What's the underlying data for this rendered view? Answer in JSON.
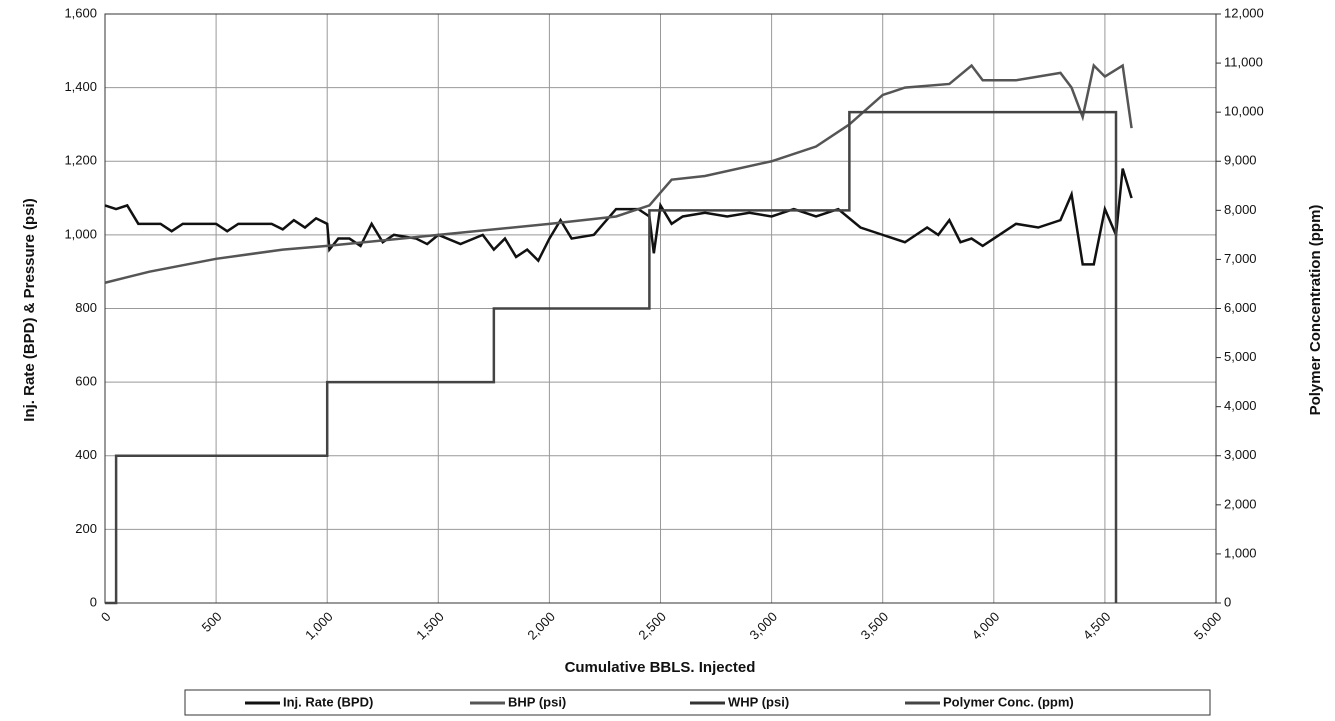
{
  "chart_data": {
    "type": "line",
    "x_label": "Cumulative BBLS. Injected",
    "y_label": "Inj. Rate (BPD) & Pressure (psi)",
    "y2_label": "Polymer Concentration (ppm)",
    "xlim": [
      0,
      5000
    ],
    "xticks": [
      0,
      500,
      {
        "value": 1000,
        "label": "1,000"
      },
      {
        "value": 1500,
        "label": "1,500"
      },
      {
        "value": 2000,
        "label": "2,000"
      },
      {
        "value": 2500,
        "label": "2,500"
      },
      {
        "value": 3000,
        "label": "3,000"
      },
      {
        "value": 3500,
        "label": "3,500"
      },
      {
        "value": 4000,
        "label": "4,000"
      },
      {
        "value": 4500,
        "label": "4,500"
      },
      {
        "value": 5000,
        "label": "5,000"
      }
    ],
    "ylim": [
      0,
      1600
    ],
    "yticks": [
      0,
      200,
      400,
      600,
      800,
      {
        "value": 1000,
        "label": "1,000"
      },
      {
        "value": 1200,
        "label": "1,200"
      },
      {
        "value": 1400,
        "label": "1,400"
      },
      {
        "value": 1600,
        "label": "1,600"
      }
    ],
    "y2lim": [
      0,
      12000
    ],
    "y2ticks": [
      0,
      {
        "value": 1000,
        "label": "1,000"
      },
      {
        "value": 2000,
        "label": "2,000"
      },
      {
        "value": 3000,
        "label": "3,000"
      },
      {
        "value": 4000,
        "label": "4,000"
      },
      {
        "value": 5000,
        "label": "5,000"
      },
      {
        "value": 6000,
        "label": "6,000"
      },
      {
        "value": 7000,
        "label": "7,000"
      },
      {
        "value": 8000,
        "label": "8,000"
      },
      {
        "value": 9000,
        "label": "9,000"
      },
      {
        "value": 10000,
        "label": "10,000"
      },
      {
        "value": 11000,
        "label": "11,000"
      },
      {
        "value": 12000,
        "label": "12,000"
      }
    ],
    "grid": true,
    "legend": "bottom",
    "series": [
      {
        "name": "Inj. Rate (BPD)",
        "color": "#111111",
        "x": [
          0,
          50,
          100,
          150,
          250,
          300,
          350,
          500,
          550,
          600,
          750,
          800,
          850,
          900,
          950,
          1000,
          1010,
          1050,
          1100,
          1150,
          1200,
          1250,
          1300,
          1400,
          1450,
          1500,
          1600,
          1700,
          1750,
          1800,
          1850,
          1900,
          1950,
          2000,
          2050,
          2100,
          2200,
          2300,
          2400,
          2450,
          2470,
          2500,
          2550,
          2600,
          2700,
          2800,
          2900,
          3000,
          3100,
          3200,
          3300,
          3400,
          3500,
          3600,
          3700,
          3750,
          3800,
          3850,
          3900,
          3950,
          4000,
          4100,
          4200,
          4300,
          4350,
          4400,
          4450,
          4500,
          4550,
          4580,
          4620
        ],
        "values": [
          1080,
          1070,
          1080,
          1030,
          1030,
          1010,
          1030,
          1030,
          1010,
          1030,
          1030,
          1015,
          1040,
          1020,
          1045,
          1030,
          960,
          990,
          990,
          970,
          1030,
          980,
          1000,
          990,
          975,
          1000,
          975,
          1000,
          960,
          990,
          940,
          960,
          930,
          990,
          1040,
          990,
          1000,
          1070,
          1070,
          1050,
          950,
          1080,
          1030,
          1050,
          1060,
          1050,
          1060,
          1050,
          1070,
          1050,
          1070,
          1020,
          1000,
          980,
          1020,
          1000,
          1040,
          980,
          990,
          970,
          990,
          1030,
          1020,
          1040,
          1110,
          920,
          920,
          1070,
          1000,
          1180,
          1100
        ]
      },
      {
        "name": "BHP (psi)",
        "color": "#555555",
        "x": [
          0,
          200,
          500,
          800,
          1000,
          1500,
          2000,
          2300,
          2450,
          2550,
          2700,
          3000,
          3200,
          3350,
          3500,
          3600,
          3800,
          3900,
          3950,
          4100,
          4300,
          4350,
          4400,
          4450,
          4500,
          4580,
          4620
        ],
        "values": [
          870,
          900,
          935,
          960,
          970,
          1000,
          1030,
          1050,
          1080,
          1150,
          1160,
          1200,
          1240,
          1300,
          1380,
          1400,
          1410,
          1460,
          1420,
          1420,
          1440,
          1400,
          1320,
          1460,
          1430,
          1460,
          1290
        ]
      },
      {
        "name": "WHP (psi)",
        "color": "#333333",
        "x": [
          0
        ],
        "values": [
          null
        ]
      },
      {
        "name": "Polymer Conc. (ppm)",
        "color": "#444444",
        "axis": "y2",
        "x": [
          0,
          50,
          50,
          1000,
          1000,
          1750,
          1750,
          2450,
          2450,
          3350,
          3350,
          4550,
          4550
        ],
        "values": [
          0,
          0,
          3000,
          3000,
          4500,
          4500,
          6000,
          6000,
          8000,
          8000,
          10000,
          10000,
          0
        ]
      }
    ]
  }
}
